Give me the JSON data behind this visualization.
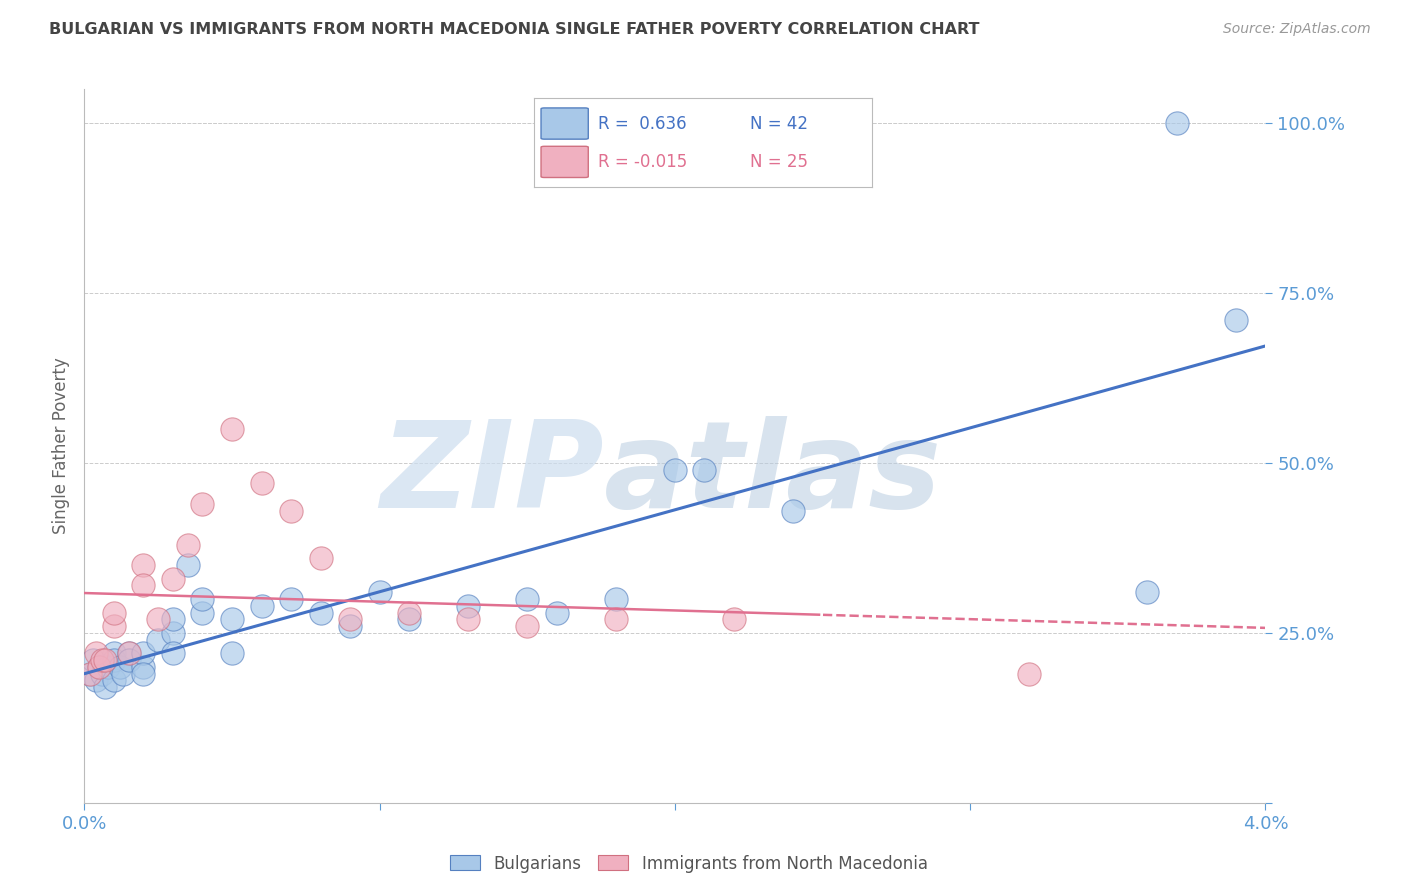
{
  "title": "BULGARIAN VS IMMIGRANTS FROM NORTH MACEDONIA SINGLE FATHER POVERTY CORRELATION CHART",
  "source": "Source: ZipAtlas.com",
  "ylabel": "Single Father Poverty",
  "y_ticks": [
    0.0,
    0.25,
    0.5,
    0.75,
    1.0
  ],
  "y_tick_labels": [
    "",
    "25.0%",
    "50.0%",
    "75.0%",
    "100.0%"
  ],
  "x_ticks": [
    0.0,
    0.01,
    0.02,
    0.03,
    0.04
  ],
  "x_tick_labels": [
    "0.0%",
    "",
    "",
    "",
    "4.0%"
  ],
  "x_lim": [
    0.0,
    0.04
  ],
  "y_lim": [
    0.0,
    1.05
  ],
  "blue_R": 0.636,
  "blue_N": 42,
  "pink_R": -0.015,
  "pink_N": 25,
  "legend_label_blue": "Bulgarians",
  "legend_label_pink": "Immigrants from North Macedonia",
  "background_color": "#ffffff",
  "grid_color": "#cccccc",
  "blue_color": "#a8c8e8",
  "blue_edge_color": "#5580c0",
  "blue_line_color": "#4472c4",
  "pink_color": "#f0b0c0",
  "pink_edge_color": "#d07080",
  "pink_line_color": "#e07090",
  "title_color": "#444444",
  "axis_color": "#5b9bd5",
  "blue_scatter_x": [
    0.0002,
    0.0003,
    0.0004,
    0.0005,
    0.0006,
    0.0007,
    0.0008,
    0.001,
    0.001,
    0.001,
    0.0012,
    0.0013,
    0.0015,
    0.0015,
    0.002,
    0.002,
    0.002,
    0.0025,
    0.003,
    0.003,
    0.003,
    0.0035,
    0.004,
    0.004,
    0.005,
    0.005,
    0.006,
    0.007,
    0.008,
    0.009,
    0.01,
    0.011,
    0.013,
    0.015,
    0.016,
    0.018,
    0.02,
    0.021,
    0.024,
    0.036,
    0.037,
    0.039
  ],
  "blue_scatter_y": [
    0.19,
    0.21,
    0.18,
    0.2,
    0.19,
    0.17,
    0.2,
    0.18,
    0.22,
    0.21,
    0.2,
    0.19,
    0.22,
    0.21,
    0.2,
    0.22,
    0.19,
    0.24,
    0.25,
    0.27,
    0.22,
    0.35,
    0.28,
    0.3,
    0.22,
    0.27,
    0.29,
    0.3,
    0.28,
    0.26,
    0.31,
    0.27,
    0.29,
    0.3,
    0.28,
    0.3,
    0.49,
    0.49,
    0.43,
    0.31,
    1.0,
    0.71
  ],
  "pink_scatter_x": [
    0.0002,
    0.0004,
    0.0005,
    0.0006,
    0.0007,
    0.001,
    0.001,
    0.0015,
    0.002,
    0.002,
    0.0025,
    0.003,
    0.0035,
    0.004,
    0.005,
    0.006,
    0.007,
    0.008,
    0.009,
    0.011,
    0.013,
    0.015,
    0.018,
    0.022,
    0.032
  ],
  "pink_scatter_y": [
    0.19,
    0.22,
    0.2,
    0.21,
    0.21,
    0.26,
    0.28,
    0.22,
    0.35,
    0.32,
    0.27,
    0.33,
    0.38,
    0.44,
    0.55,
    0.47,
    0.43,
    0.36,
    0.27,
    0.28,
    0.27,
    0.26,
    0.27,
    0.27,
    0.19
  ]
}
